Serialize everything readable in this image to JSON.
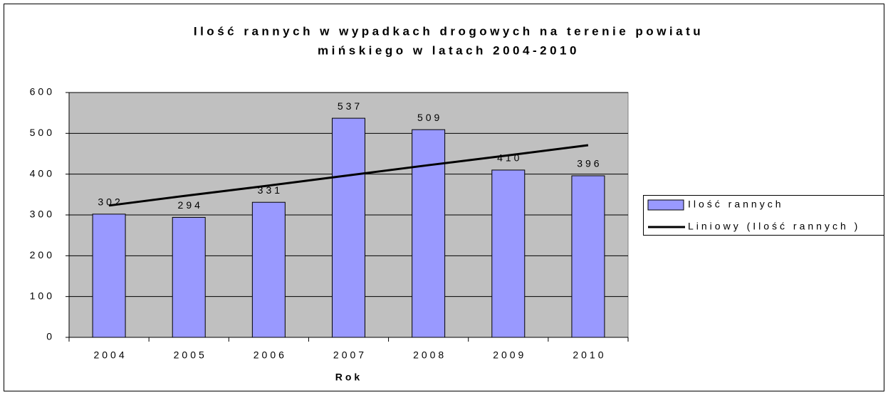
{
  "chart_data": {
    "type": "bar",
    "title": [
      "Ilość rannych w wypadkach drogowych na terenie powiatu",
      "mińskiego w latach 2004-2010"
    ],
    "xlabel": "Rok",
    "categories": [
      "2004",
      "2005",
      "2006",
      "2007",
      "2008",
      "2009",
      "2010"
    ],
    "series": [
      {
        "name": "Ilość rannych",
        "type": "bar",
        "color": "#9999ff",
        "values": [
          302,
          294,
          331,
          537,
          509,
          410,
          396
        ]
      },
      {
        "name": "Liniowy (Ilość rannych )",
        "type": "line",
        "color": "#000000",
        "values": [
          323,
          348,
          372,
          397,
          422,
          446,
          471
        ]
      }
    ],
    "ylim": [
      0,
      600
    ],
    "yticks": [
      0,
      100,
      200,
      300,
      400,
      500,
      600
    ],
    "grid": true,
    "legend": "right",
    "plot_background": "#c0c0c0"
  }
}
